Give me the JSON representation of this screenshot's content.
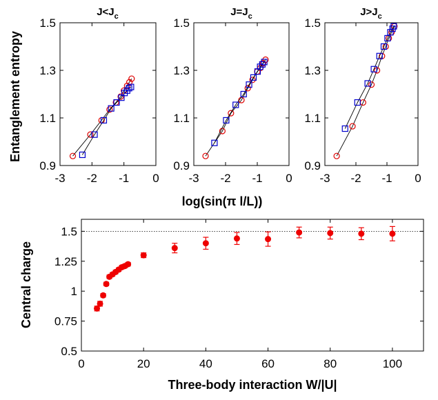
{
  "chart_data": [
    {
      "type": "scatter",
      "title": "J<J_c",
      "title_main": "J<J",
      "title_sub": "c",
      "xlabel": "log(sin(π l/L))",
      "ylabel": "Entanglement entropy",
      "xlim": [
        -3,
        0
      ],
      "ylim": [
        0.9,
        1.5
      ],
      "xticks": [
        "-3",
        "-2",
        "-1",
        "0"
      ],
      "yticks": [
        "0.9",
        "1.1",
        "1.3",
        "1.5"
      ],
      "series": [
        {
          "marker": "circle",
          "color": "#dd0000",
          "points": [
            [
              -2.6,
              0.94
            ],
            [
              -2.05,
              1.03
            ],
            [
              -1.7,
              1.09
            ],
            [
              -1.45,
              1.135
            ],
            [
              -1.25,
              1.165
            ],
            [
              -1.1,
              1.19
            ],
            [
              -1.0,
              1.215
            ],
            [
              -0.9,
              1.235
            ],
            [
              -0.83,
              1.25
            ],
            [
              -0.76,
              1.265
            ]
          ]
        },
        {
          "marker": "square",
          "color": "#0000cc",
          "points": [
            [
              -2.3,
              0.945
            ],
            [
              -1.92,
              1.03
            ],
            [
              -1.63,
              1.09
            ],
            [
              -1.4,
              1.14
            ],
            [
              -1.23,
              1.165
            ],
            [
              -1.08,
              1.185
            ],
            [
              -0.98,
              1.205
            ],
            [
              -0.9,
              1.215
            ],
            [
              -0.84,
              1.225
            ],
            [
              -0.78,
              1.23
            ]
          ]
        }
      ]
    },
    {
      "type": "scatter",
      "title": "J=J_c",
      "title_main": "J=J",
      "title_sub": "c",
      "xlim": [
        -3,
        0
      ],
      "ylim": [
        0.9,
        1.5
      ],
      "xticks": [
        "-3",
        "-2",
        "-1",
        "0"
      ],
      "yticks": [
        "0.9",
        "1.1",
        "1.3",
        "1.5"
      ],
      "series": [
        {
          "marker": "circle",
          "color": "#dd0000",
          "points": [
            [
              -2.63,
              0.94
            ],
            [
              -2.1,
              1.045
            ],
            [
              -1.83,
              1.12
            ],
            [
              -1.5,
              1.175
            ],
            [
              -1.3,
              1.225
            ],
            [
              -1.15,
              1.26
            ],
            [
              -1.0,
              1.295
            ],
            [
              -0.9,
              1.31
            ],
            [
              -0.82,
              1.33
            ],
            [
              -0.74,
              1.345
            ]
          ]
        },
        {
          "marker": "square",
          "color": "#0000cc",
          "points": [
            [
              -2.35,
              0.995
            ],
            [
              -1.98,
              1.09
            ],
            [
              -1.68,
              1.155
            ],
            [
              -1.43,
              1.2
            ],
            [
              -1.26,
              1.24
            ],
            [
              -1.12,
              1.27
            ],
            [
              -0.99,
              1.295
            ],
            [
              -0.91,
              1.315
            ],
            [
              -0.84,
              1.325
            ],
            [
              -0.78,
              1.335
            ]
          ]
        }
      ]
    },
    {
      "type": "scatter",
      "title": "J>J_c",
      "title_main": "J>J",
      "title_sub": "c",
      "xlim": [
        -3,
        0
      ],
      "ylim": [
        0.9,
        1.5
      ],
      "xticks": [
        "-3",
        "-2",
        "-1",
        "0"
      ],
      "yticks": [
        "0.9",
        "1.1",
        "1.3",
        "1.5"
      ],
      "series": [
        {
          "marker": "circle",
          "color": "#dd0000",
          "points": [
            [
              -2.62,
              0.94
            ],
            [
              -2.11,
              1.065
            ],
            [
              -1.77,
              1.165
            ],
            [
              -1.5,
              1.24
            ],
            [
              -1.32,
              1.3
            ],
            [
              -1.16,
              1.36
            ],
            [
              -1.04,
              1.4
            ],
            [
              -0.94,
              1.435
            ],
            [
              -0.85,
              1.46
            ],
            [
              -0.76,
              1.485
            ]
          ]
        },
        {
          "marker": "square",
          "color": "#0000cc",
          "points": [
            [
              -2.35,
              1.055
            ],
            [
              -1.95,
              1.165
            ],
            [
              -1.62,
              1.245
            ],
            [
              -1.42,
              1.305
            ],
            [
              -1.24,
              1.36
            ],
            [
              -1.1,
              1.4
            ],
            [
              -0.98,
              1.435
            ],
            [
              -0.89,
              1.46
            ],
            [
              -0.82,
              1.475
            ],
            [
              -0.78,
              1.485
            ]
          ]
        }
      ]
    },
    {
      "type": "scatter",
      "xlabel": "Three-body interaction W/|U|",
      "ylabel": "Central charge",
      "xlim": [
        0,
        110
      ],
      "ylim": [
        0.5,
        1.6
      ],
      "xticks": [
        "0",
        "20",
        "40",
        "60",
        "80",
        "100"
      ],
      "yticks": [
        "0.5",
        "0.75",
        "1",
        "1.25",
        "1.5"
      ],
      "reference_line_y": 1.5,
      "series": [
        {
          "marker": "filled-circle",
          "color": "#ee0000",
          "x": [
            5,
            6,
            7,
            8,
            9,
            10,
            11,
            12,
            13,
            14,
            15,
            20,
            30,
            40,
            50,
            60,
            70,
            80,
            90,
            100
          ],
          "y": [
            0.855,
            0.895,
            0.965,
            1.06,
            1.12,
            1.14,
            1.16,
            1.18,
            1.2,
            1.21,
            1.225,
            1.3,
            1.36,
            1.4,
            1.44,
            1.435,
            1.49,
            1.485,
            1.48,
            1.48
          ],
          "yerr": [
            0.02,
            0.02,
            0.015,
            0.015,
            0.015,
            0.015,
            0.015,
            0.015,
            0.015,
            0.015,
            0.015,
            0.02,
            0.04,
            0.05,
            0.05,
            0.06,
            0.045,
            0.05,
            0.05,
            0.06
          ]
        }
      ]
    }
  ]
}
